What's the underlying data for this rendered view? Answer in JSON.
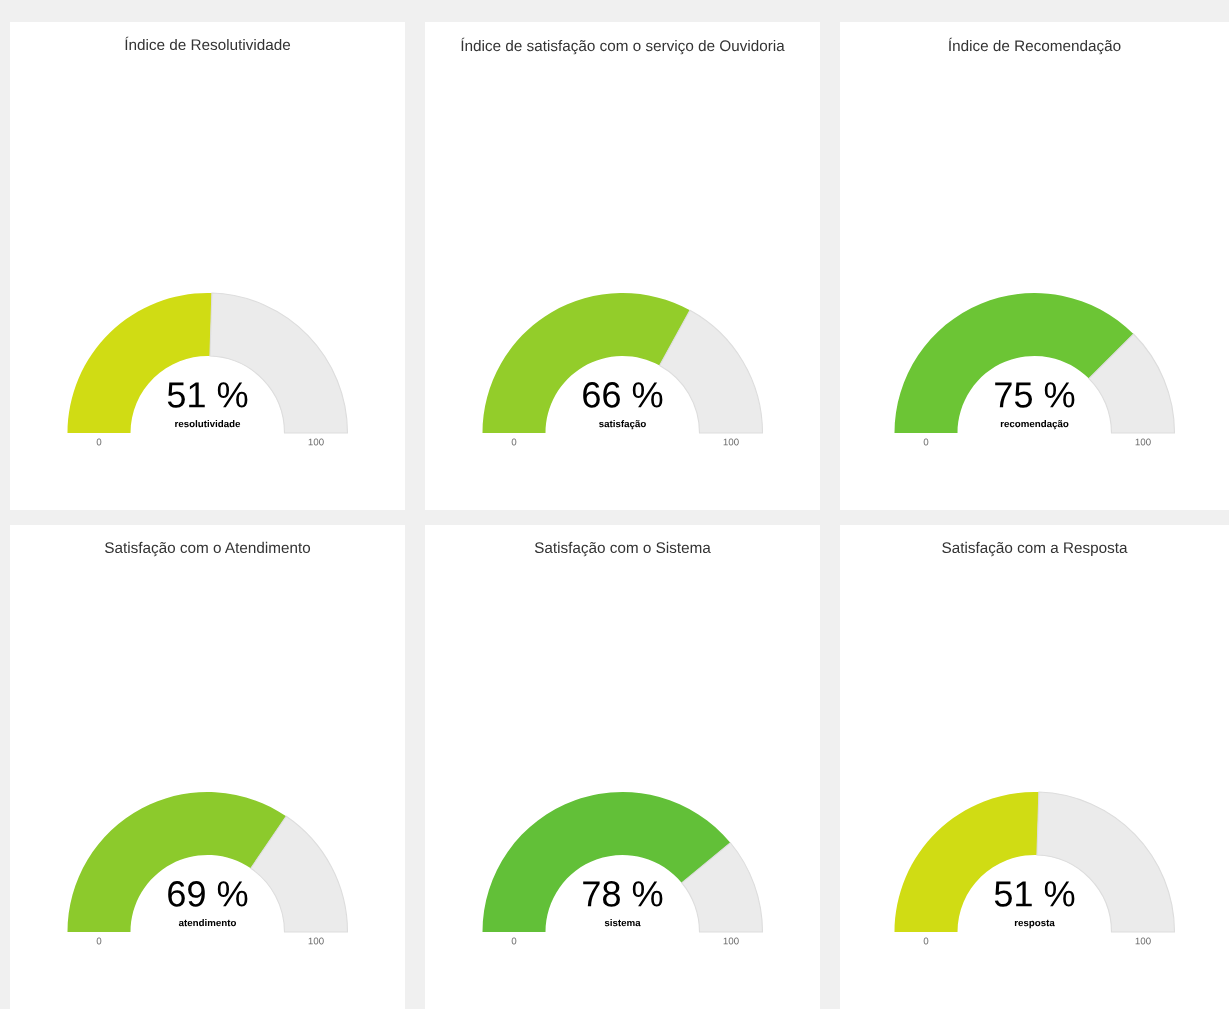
{
  "chart_data": [
    {
      "type": "donut",
      "title": "Índice de Resolutividade",
      "categories": [
        "resolutividade",
        null
      ],
      "values": [
        51,
        49
      ],
      "colors": [
        "#d0dc14",
        "#ebebeb"
      ],
      "value_labels": [
        "51 %",
        null
      ],
      "annotations": [
        "0",
        "100"
      ]
    },
    {
      "type": "donut",
      "title": "Índice de satisfação com o serviço de Ouvidoria",
      "categories": [
        "satisfação",
        null
      ],
      "values": [
        66,
        34
      ],
      "colors": [
        "#93cd2a",
        "#ebebeb"
      ],
      "value_labels": [
        "66 %",
        null
      ],
      "annotations": [
        "0",
        "100"
      ]
    },
    {
      "type": "donut",
      "title": "Índice de Recomendação",
      "categories": [
        "recomendação",
        null
      ],
      "values": [
        75,
        25
      ],
      "colors": [
        "#6cc535",
        "#ebebeb"
      ],
      "value_labels": [
        "75 %",
        null
      ],
      "annotations": [
        "0",
        "100"
      ]
    },
    {
      "type": "donut",
      "title": "Satisfação com o Atendimento",
      "categories": [
        "atendimento",
        null
      ],
      "values": [
        69,
        31
      ],
      "colors": [
        "#8cca2c",
        "#ebebeb"
      ],
      "value_labels": [
        "69 %",
        null
      ],
      "annotations": [
        "0",
        "100"
      ]
    },
    {
      "type": "donut",
      "title": "Satisfação com o Sistema",
      "categories": [
        "sistema",
        null
      ],
      "values": [
        78,
        22
      ],
      "colors": [
        "#62c038",
        "#ebebeb"
      ],
      "value_labels": [
        "78 %",
        null
      ],
      "annotations": [
        "0",
        "100"
      ]
    },
    {
      "type": "donut",
      "title": "Satisfação com a Resposta",
      "categories": [
        "resposta",
        null
      ],
      "values": [
        51,
        49
      ],
      "colors": [
        "#d0dc14",
        "#ebebeb"
      ],
      "value_labels": [
        "51 %",
        null
      ],
      "annotations": [
        "0",
        "100"
      ]
    }
  ]
}
